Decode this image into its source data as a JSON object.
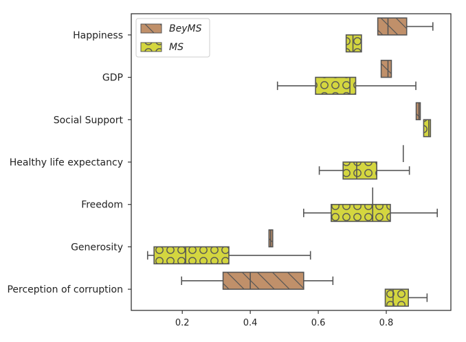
{
  "chart_data": {
    "type": "boxplot",
    "orientation": "horizontal",
    "categories": [
      "Happiness",
      "GDP",
      "Social Support",
      "Healthy life expectancy",
      "Freedom",
      "Generosity",
      "Perception of corruption"
    ],
    "xticks": [
      0.2,
      0.4,
      0.6,
      0.8
    ],
    "xtick_labels": [
      "0.2",
      "0.4",
      "0.6",
      "0.8"
    ],
    "xlim": [
      0.05,
      0.99
    ],
    "legend_position": "top-left",
    "series": [
      {
        "name": "BeyMS",
        "color": "#c0906a",
        "hatch": "diagonal",
        "boxes": [
          {
            "whislo": 0.775,
            "q1": 0.775,
            "med": 0.805,
            "q3": 0.86,
            "whishi": 0.937
          },
          {
            "whislo": 0.785,
            "q1": 0.785,
            "med": 0.805,
            "q3": 0.815,
            "whishi": 0.815
          },
          {
            "whislo": 0.888,
            "q1": 0.888,
            "med": 0.896,
            "q3": 0.9,
            "whishi": 0.9
          },
          {
            "whislo": 0.85,
            "q1": 0.85,
            "med": 0.85,
            "q3": 0.85,
            "whishi": 0.85
          },
          {
            "whislo": 0.76,
            "q1": 0.76,
            "med": 0.76,
            "q3": 0.76,
            "whishi": 0.76
          },
          {
            "whislo": 0.455,
            "q1": 0.455,
            "med": 0.46,
            "q3": 0.466,
            "whishi": 0.466
          },
          {
            "whislo": 0.198,
            "q1": 0.32,
            "med": 0.4,
            "q3": 0.557,
            "whishi": 0.643
          }
        ]
      },
      {
        "name": "MS",
        "color": "#d4d63f",
        "hatch": "circles",
        "boxes": [
          {
            "whislo": 0.682,
            "q1": 0.682,
            "med": 0.702,
            "q3": 0.727,
            "whishi": 0.727
          },
          {
            "whislo": 0.48,
            "q1": 0.592,
            "med": 0.693,
            "q3": 0.71,
            "whishi": 0.887
          },
          {
            "whislo": 0.91,
            "q1": 0.91,
            "med": 0.925,
            "q3": 0.93,
            "whishi": 0.93
          },
          {
            "whislo": 0.603,
            "q1": 0.673,
            "med": 0.713,
            "q3": 0.772,
            "whishi": 0.868
          },
          {
            "whislo": 0.557,
            "q1": 0.638,
            "med": 0.76,
            "q3": 0.812,
            "whishi": 0.95
          },
          {
            "whislo": 0.098,
            "q1": 0.117,
            "med": 0.21,
            "q3": 0.337,
            "whishi": 0.577
          },
          {
            "whislo": 0.797,
            "q1": 0.797,
            "med": 0.82,
            "q3": 0.865,
            "whishi": 0.92
          }
        ]
      }
    ]
  }
}
